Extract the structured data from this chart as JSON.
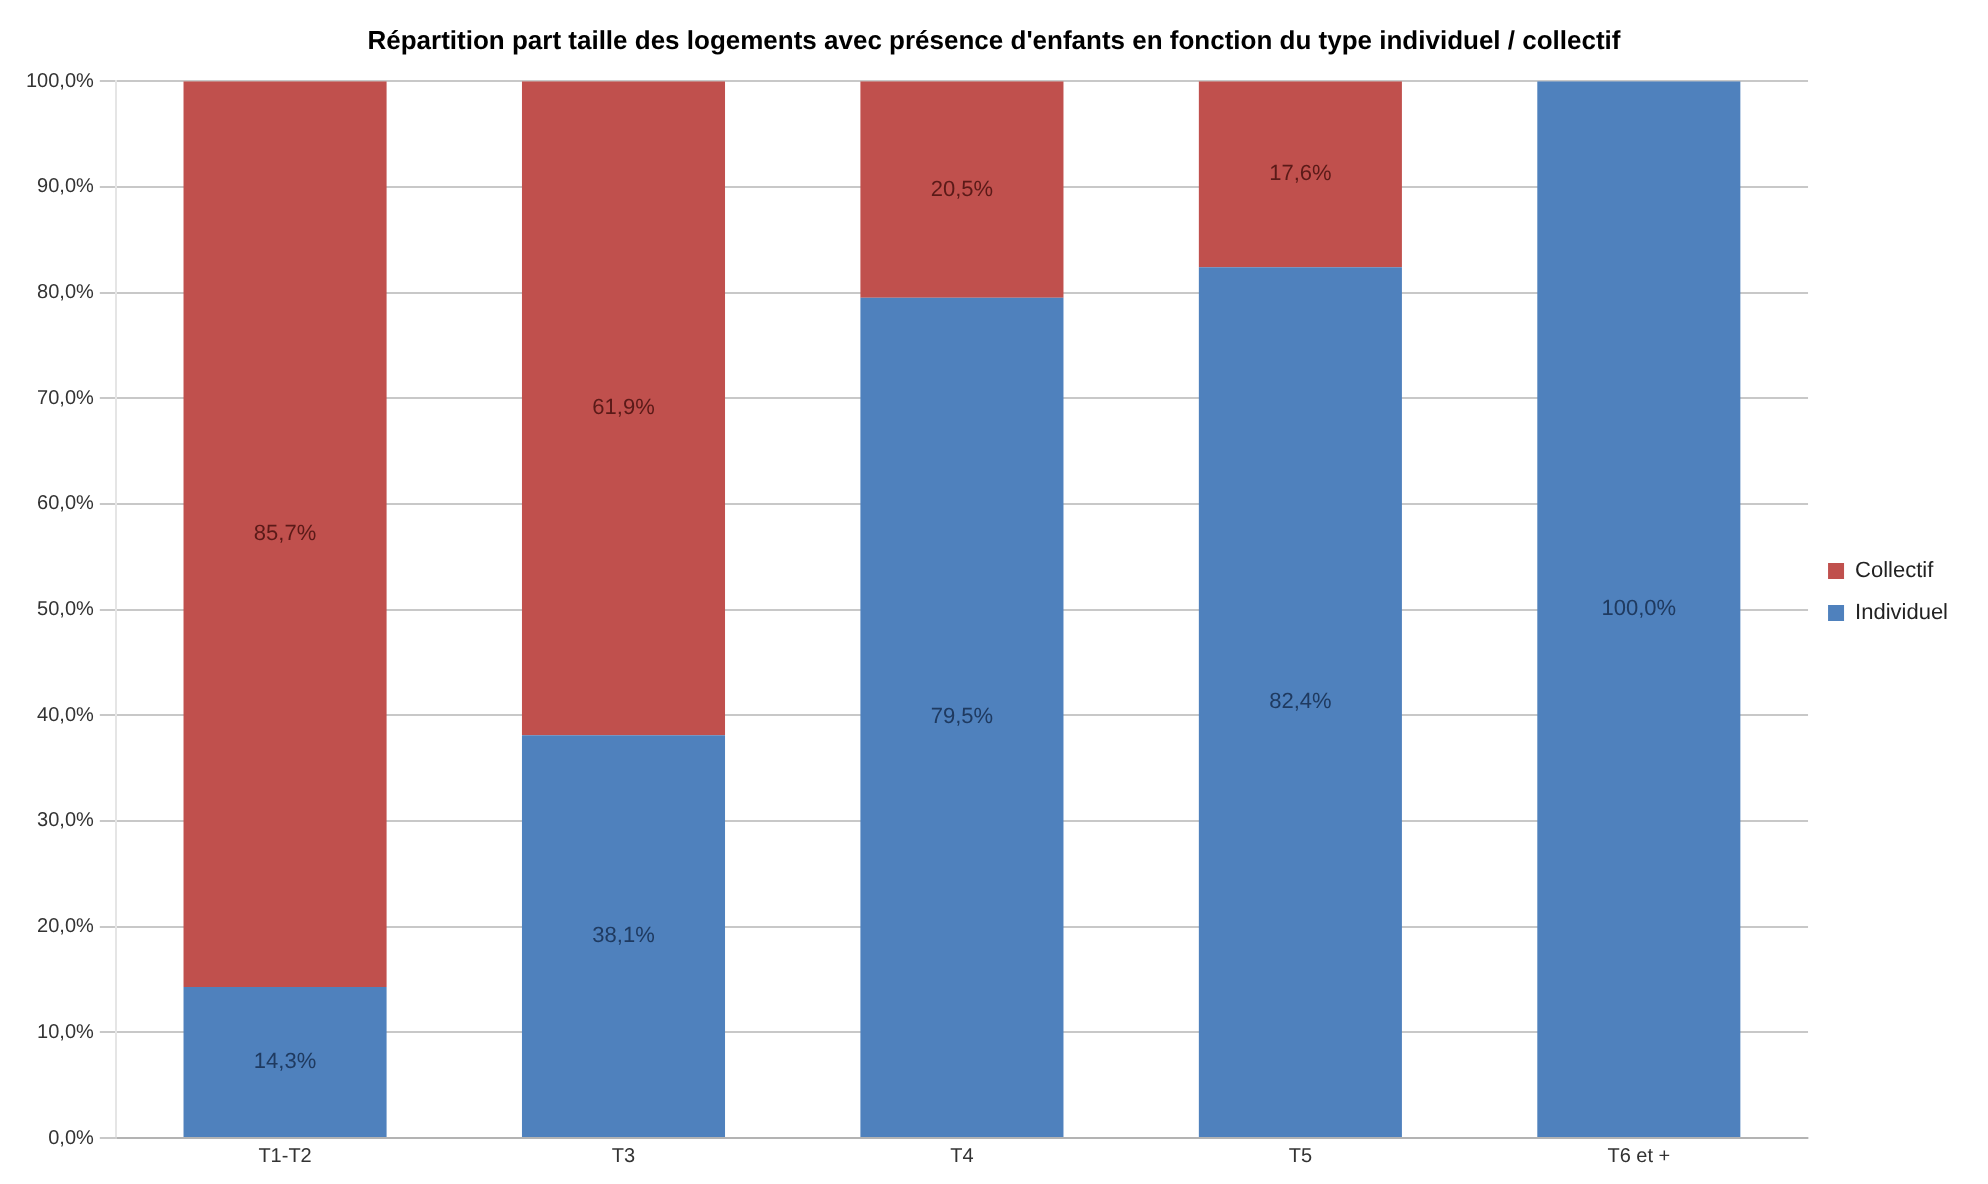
{
  "chart_data": {
    "type": "bar",
    "stacked": true,
    "title": "Répartition part taille des logements avec présence d'enfants en fonction du type individuel / collectif",
    "categories": [
      "T1-T2",
      "T3",
      "T4",
      "T5",
      "T6 et +"
    ],
    "series": [
      {
        "name": "Individuel",
        "color": "#4f81bd",
        "values": [
          14.3,
          38.1,
          79.5,
          82.4,
          100
        ],
        "value_labels": [
          "14,3%",
          "38,1%",
          "79,5%",
          "82,4%",
          "100,0%"
        ]
      },
      {
        "name": "Collectif",
        "color": "#c0504d",
        "values": [
          85.7,
          61.9,
          20.5,
          17.6,
          0
        ],
        "value_labels": [
          "85,7%",
          "61,9%",
          "20,5%",
          "17,6%",
          null
        ]
      }
    ],
    "ylim": [
      0,
      100
    ],
    "yticks": [
      {
        "value": 0,
        "label": "0,0%"
      },
      {
        "value": 10,
        "label": "10,0%"
      },
      {
        "value": 20,
        "label": "20,0%"
      },
      {
        "value": 30,
        "label": "30,0%"
      },
      {
        "value": 40,
        "label": "40,0%"
      },
      {
        "value": 50,
        "label": "50,0%"
      },
      {
        "value": 60,
        "label": "60,0%"
      },
      {
        "value": 70,
        "label": "70,0%"
      },
      {
        "value": 80,
        "label": "80,0%"
      },
      {
        "value": 90,
        "label": "90,0%"
      },
      {
        "value": 100,
        "label": "100,0%"
      }
    ],
    "grid": "y",
    "legend": "right"
  }
}
